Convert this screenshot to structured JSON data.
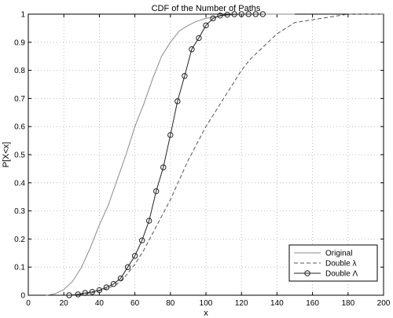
{
  "chart_data": {
    "type": "line",
    "title": "CDF of the Number of Paths",
    "xlabel": "x",
    "ylabel": "P[X<x]",
    "xlim": [
      0,
      200
    ],
    "ylim": [
      0,
      1
    ],
    "xticks": [
      0,
      20,
      40,
      60,
      80,
      100,
      120,
      140,
      160,
      180,
      200
    ],
    "yticks": [
      0,
      0.1,
      0.2,
      0.3,
      0.4,
      0.5,
      0.6,
      0.7,
      0.8,
      0.9,
      1
    ],
    "grid": true,
    "legend_position": "bottom-right",
    "series": [
      {
        "name": "Original",
        "style": "solid",
        "color": "#8a8a8a",
        "x": [
          10,
          15,
          20,
          25,
          30,
          35,
          40,
          45,
          50,
          55,
          60,
          65,
          70,
          75,
          80,
          85,
          90,
          95,
          100,
          105,
          110,
          115,
          120,
          125,
          130,
          140,
          150
        ],
        "y": [
          0.0,
          0.005,
          0.02,
          0.05,
          0.1,
          0.17,
          0.25,
          0.32,
          0.41,
          0.5,
          0.6,
          0.68,
          0.77,
          0.85,
          0.9,
          0.94,
          0.96,
          0.975,
          0.985,
          0.99,
          0.995,
          0.998,
          1.0,
          1.0,
          1.0,
          1.0,
          1.0
        ]
      },
      {
        "name": "Double λ",
        "style": "dashed",
        "color": "#555555",
        "x": [
          25,
          30,
          35,
          40,
          45,
          50,
          55,
          60,
          65,
          70,
          75,
          80,
          85,
          90,
          95,
          100,
          105,
          110,
          115,
          120,
          125,
          130,
          135,
          140,
          145,
          150,
          160,
          170,
          180,
          190,
          200
        ],
        "y": [
          0.0,
          0.003,
          0.008,
          0.015,
          0.025,
          0.04,
          0.07,
          0.11,
          0.16,
          0.22,
          0.28,
          0.34,
          0.41,
          0.48,
          0.54,
          0.6,
          0.65,
          0.7,
          0.75,
          0.8,
          0.84,
          0.87,
          0.9,
          0.93,
          0.95,
          0.97,
          0.98,
          0.99,
          1.0,
          1.0,
          1.0
        ]
      },
      {
        "name": "Double Λ",
        "style": "solid-circle",
        "color": "#222222",
        "x": [
          23,
          28,
          32,
          36,
          40,
          44,
          48,
          52,
          56,
          60,
          64,
          68,
          72,
          76,
          80,
          84,
          88,
          92,
          96,
          100,
          104,
          108,
          112,
          116,
          120,
          124,
          128,
          132
        ],
        "y": [
          0.0,
          0.003,
          0.008,
          0.012,
          0.018,
          0.028,
          0.04,
          0.06,
          0.1,
          0.14,
          0.195,
          0.265,
          0.37,
          0.455,
          0.57,
          0.69,
          0.78,
          0.875,
          0.915,
          0.96,
          0.985,
          0.995,
          0.998,
          1.0,
          1.0,
          1.0,
          1.0,
          1.0
        ]
      }
    ]
  }
}
